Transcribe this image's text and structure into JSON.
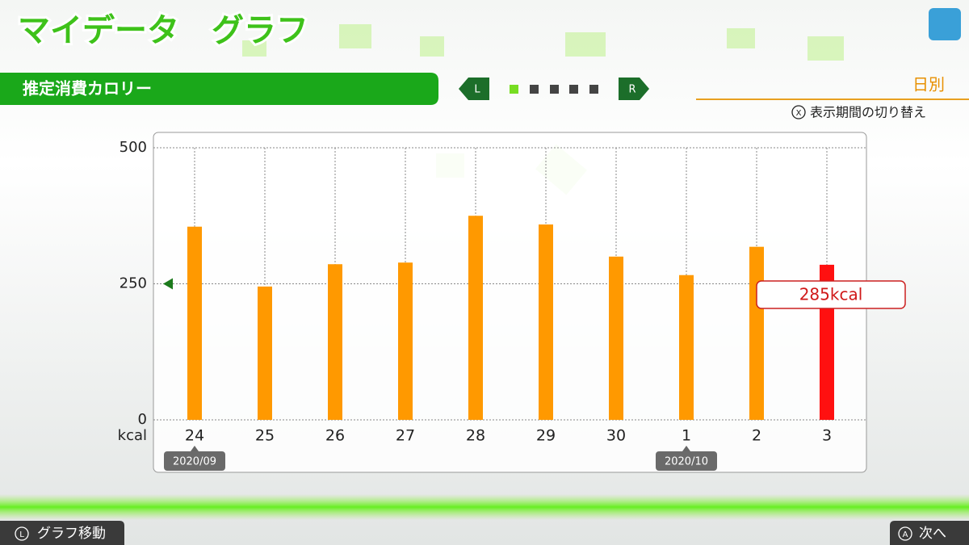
{
  "header": {
    "title": "マイデータ　グラフ",
    "section": "推定消費カロリー",
    "left_button": "L",
    "right_button": "R",
    "period": "日別",
    "toggle_button": "X",
    "toggle_hint": "表示期間の切り替え"
  },
  "footer": {
    "left_button": "L",
    "left_hint": "グラフ移動",
    "right_button": "A",
    "right_hint": "次へ"
  },
  "chart_data": {
    "type": "bar",
    "y_unit": "kcal",
    "categories": [
      "24",
      "25",
      "26",
      "27",
      "28",
      "29",
      "30",
      "1",
      "2",
      "3"
    ],
    "month_labels": [
      "2020/09",
      null,
      null,
      null,
      null,
      null,
      null,
      "2020/10",
      null,
      null
    ],
    "values": [
      355,
      245,
      286,
      289,
      375,
      359,
      300,
      266,
      318,
      285
    ],
    "value_labels": [
      null,
      null,
      null,
      null,
      null,
      null,
      null,
      null,
      null,
      "285kcal"
    ],
    "colors": [
      "#ff9900",
      "#ff9900",
      "#ff9900",
      "#ff9900",
      "#ff9900",
      "#ff9900",
      "#ff9900",
      "#ff9900",
      "#ff9900",
      "#ff1010"
    ],
    "ylim": [
      0,
      500
    ],
    "yticks": [
      0,
      250,
      500
    ],
    "grid": true
  }
}
